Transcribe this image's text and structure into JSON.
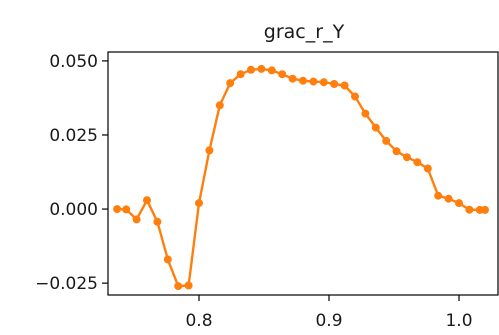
{
  "chart_data": {
    "type": "line",
    "title": "grac_r_Y",
    "xlabel": "",
    "ylabel": "",
    "xlim": [
      0.73,
      1.03
    ],
    "ylim": [
      -0.029,
      0.053
    ],
    "grid": false,
    "x_ticks": [
      0.8,
      0.9,
      1.0
    ],
    "x_tick_labels": [
      "0.8",
      "0.9",
      "1.0"
    ],
    "y_ticks": [
      -0.025,
      0.0,
      0.025,
      0.05
    ],
    "y_tick_labels": [
      "−0.025",
      "0.000",
      "0.025",
      "0.050"
    ],
    "series": [
      {
        "color": "#ff7f0e",
        "marker": "circle",
        "x": [
          0.737,
          0.744,
          0.752,
          0.76,
          0.768,
          0.776,
          0.784,
          0.792,
          0.8,
          0.808,
          0.816,
          0.824,
          0.832,
          0.84,
          0.848,
          0.856,
          0.864,
          0.872,
          0.88,
          0.888,
          0.896,
          0.904,
          0.912,
          0.92,
          0.928,
          0.936,
          0.944,
          0.952,
          0.96,
          0.968,
          0.976,
          0.984,
          0.992,
          1.0,
          1.008,
          1.016,
          1.02
        ],
        "y": [
          0.0,
          -0.0001,
          -0.0035,
          0.003,
          -0.0043,
          -0.017,
          -0.026,
          -0.0258,
          0.002,
          0.0198,
          0.035,
          0.0425,
          0.0455,
          0.047,
          0.0473,
          0.0468,
          0.0455,
          0.044,
          0.0433,
          0.043,
          0.0428,
          0.0422,
          0.0417,
          0.038,
          0.0322,
          0.0275,
          0.023,
          0.0195,
          0.0175,
          0.0158,
          0.0137,
          0.0045,
          0.0035,
          0.002,
          -0.0002,
          -0.0003,
          -0.0003
        ]
      }
    ]
  }
}
